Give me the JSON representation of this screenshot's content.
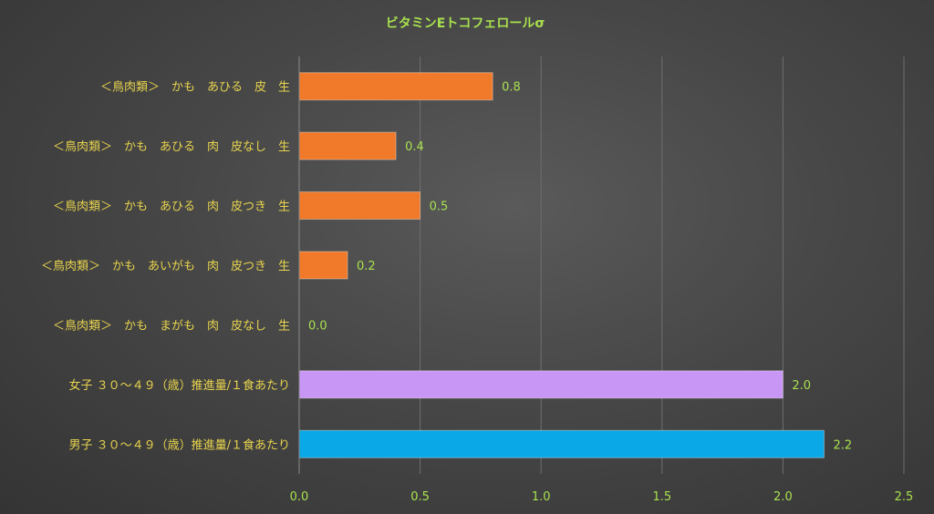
{
  "chart_data": {
    "type": "bar",
    "orientation": "horizontal",
    "title": "ビタミンEトコフェロールσ",
    "xlabel": "",
    "ylabel": "",
    "xlim": [
      0,
      2.5
    ],
    "x_ticks": [
      "0.0",
      "0.5",
      "1.0",
      "1.5",
      "2.0",
      "2.5"
    ],
    "grid": true,
    "categories": [
      "＜鳥肉類＞　かも　あひる　皮　生",
      "＜鳥肉類＞　かも　あひる　肉　皮なし　生",
      "＜鳥肉類＞　かも　あひる　肉　皮つき　生",
      "＜鳥肉類＞　かも　あいがも　肉　皮つき　生",
      "＜鳥肉類＞　かも　まがも　肉　皮なし　生",
      "女子 ３０～４９（歳）推進量/１食あたり",
      "男子 ３０～４９（歳）推進量/１食あたり"
    ],
    "values": [
      0.8,
      0.4,
      0.5,
      0.2,
      0.0,
      2.0,
      2.17
    ],
    "value_labels": [
      "0.8",
      "0.4",
      "0.5",
      "0.2",
      "0.0",
      "2.0",
      "2.2"
    ],
    "colors": [
      "#f07a2a",
      "#f07a2a",
      "#f07a2a",
      "#f07a2a",
      "#f07a2a",
      "#c896f5",
      "#0aa8e6"
    ]
  }
}
